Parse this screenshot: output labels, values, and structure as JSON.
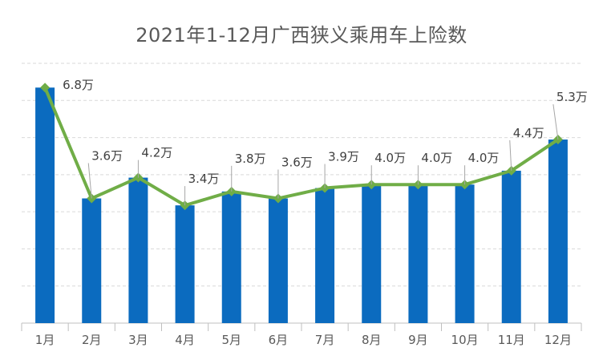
{
  "chart_data": {
    "type": "bar",
    "title": "2021年1-12月广西狭义乘用车上险数",
    "categories": [
      "1月",
      "2月",
      "3月",
      "4月",
      "5月",
      "6月",
      "7月",
      "8月",
      "9月",
      "10月",
      "11月",
      "12月"
    ],
    "series": [
      {
        "type": "bar",
        "values": [
          6.8,
          3.6,
          4.2,
          3.4,
          3.8,
          3.6,
          3.9,
          4.0,
          4.0,
          4.0,
          4.4,
          5.3
        ],
        "color": "#0b6bbf"
      },
      {
        "type": "line",
        "values": [
          6.8,
          3.6,
          4.2,
          3.4,
          3.8,
          3.6,
          3.9,
          4.0,
          4.0,
          4.0,
          4.4,
          5.3
        ],
        "color": "#70ad47"
      }
    ],
    "data_labels": [
      "6.8万",
      "3.6万",
      "4.2万",
      "3.4万",
      "3.8万",
      "3.6万",
      "3.9万",
      "4.0万",
      "4.0万",
      "4.0万",
      "4.4万",
      "5.3万"
    ],
    "ylim": [
      0,
      7.5
    ],
    "grid": true,
    "legend": "none"
  },
  "colors": {
    "bar": "#0b6bbf",
    "line": "#70ad47",
    "grid": "#d9d9d9",
    "axis": "#bfbfbf",
    "leader": "#a6a6a6"
  }
}
